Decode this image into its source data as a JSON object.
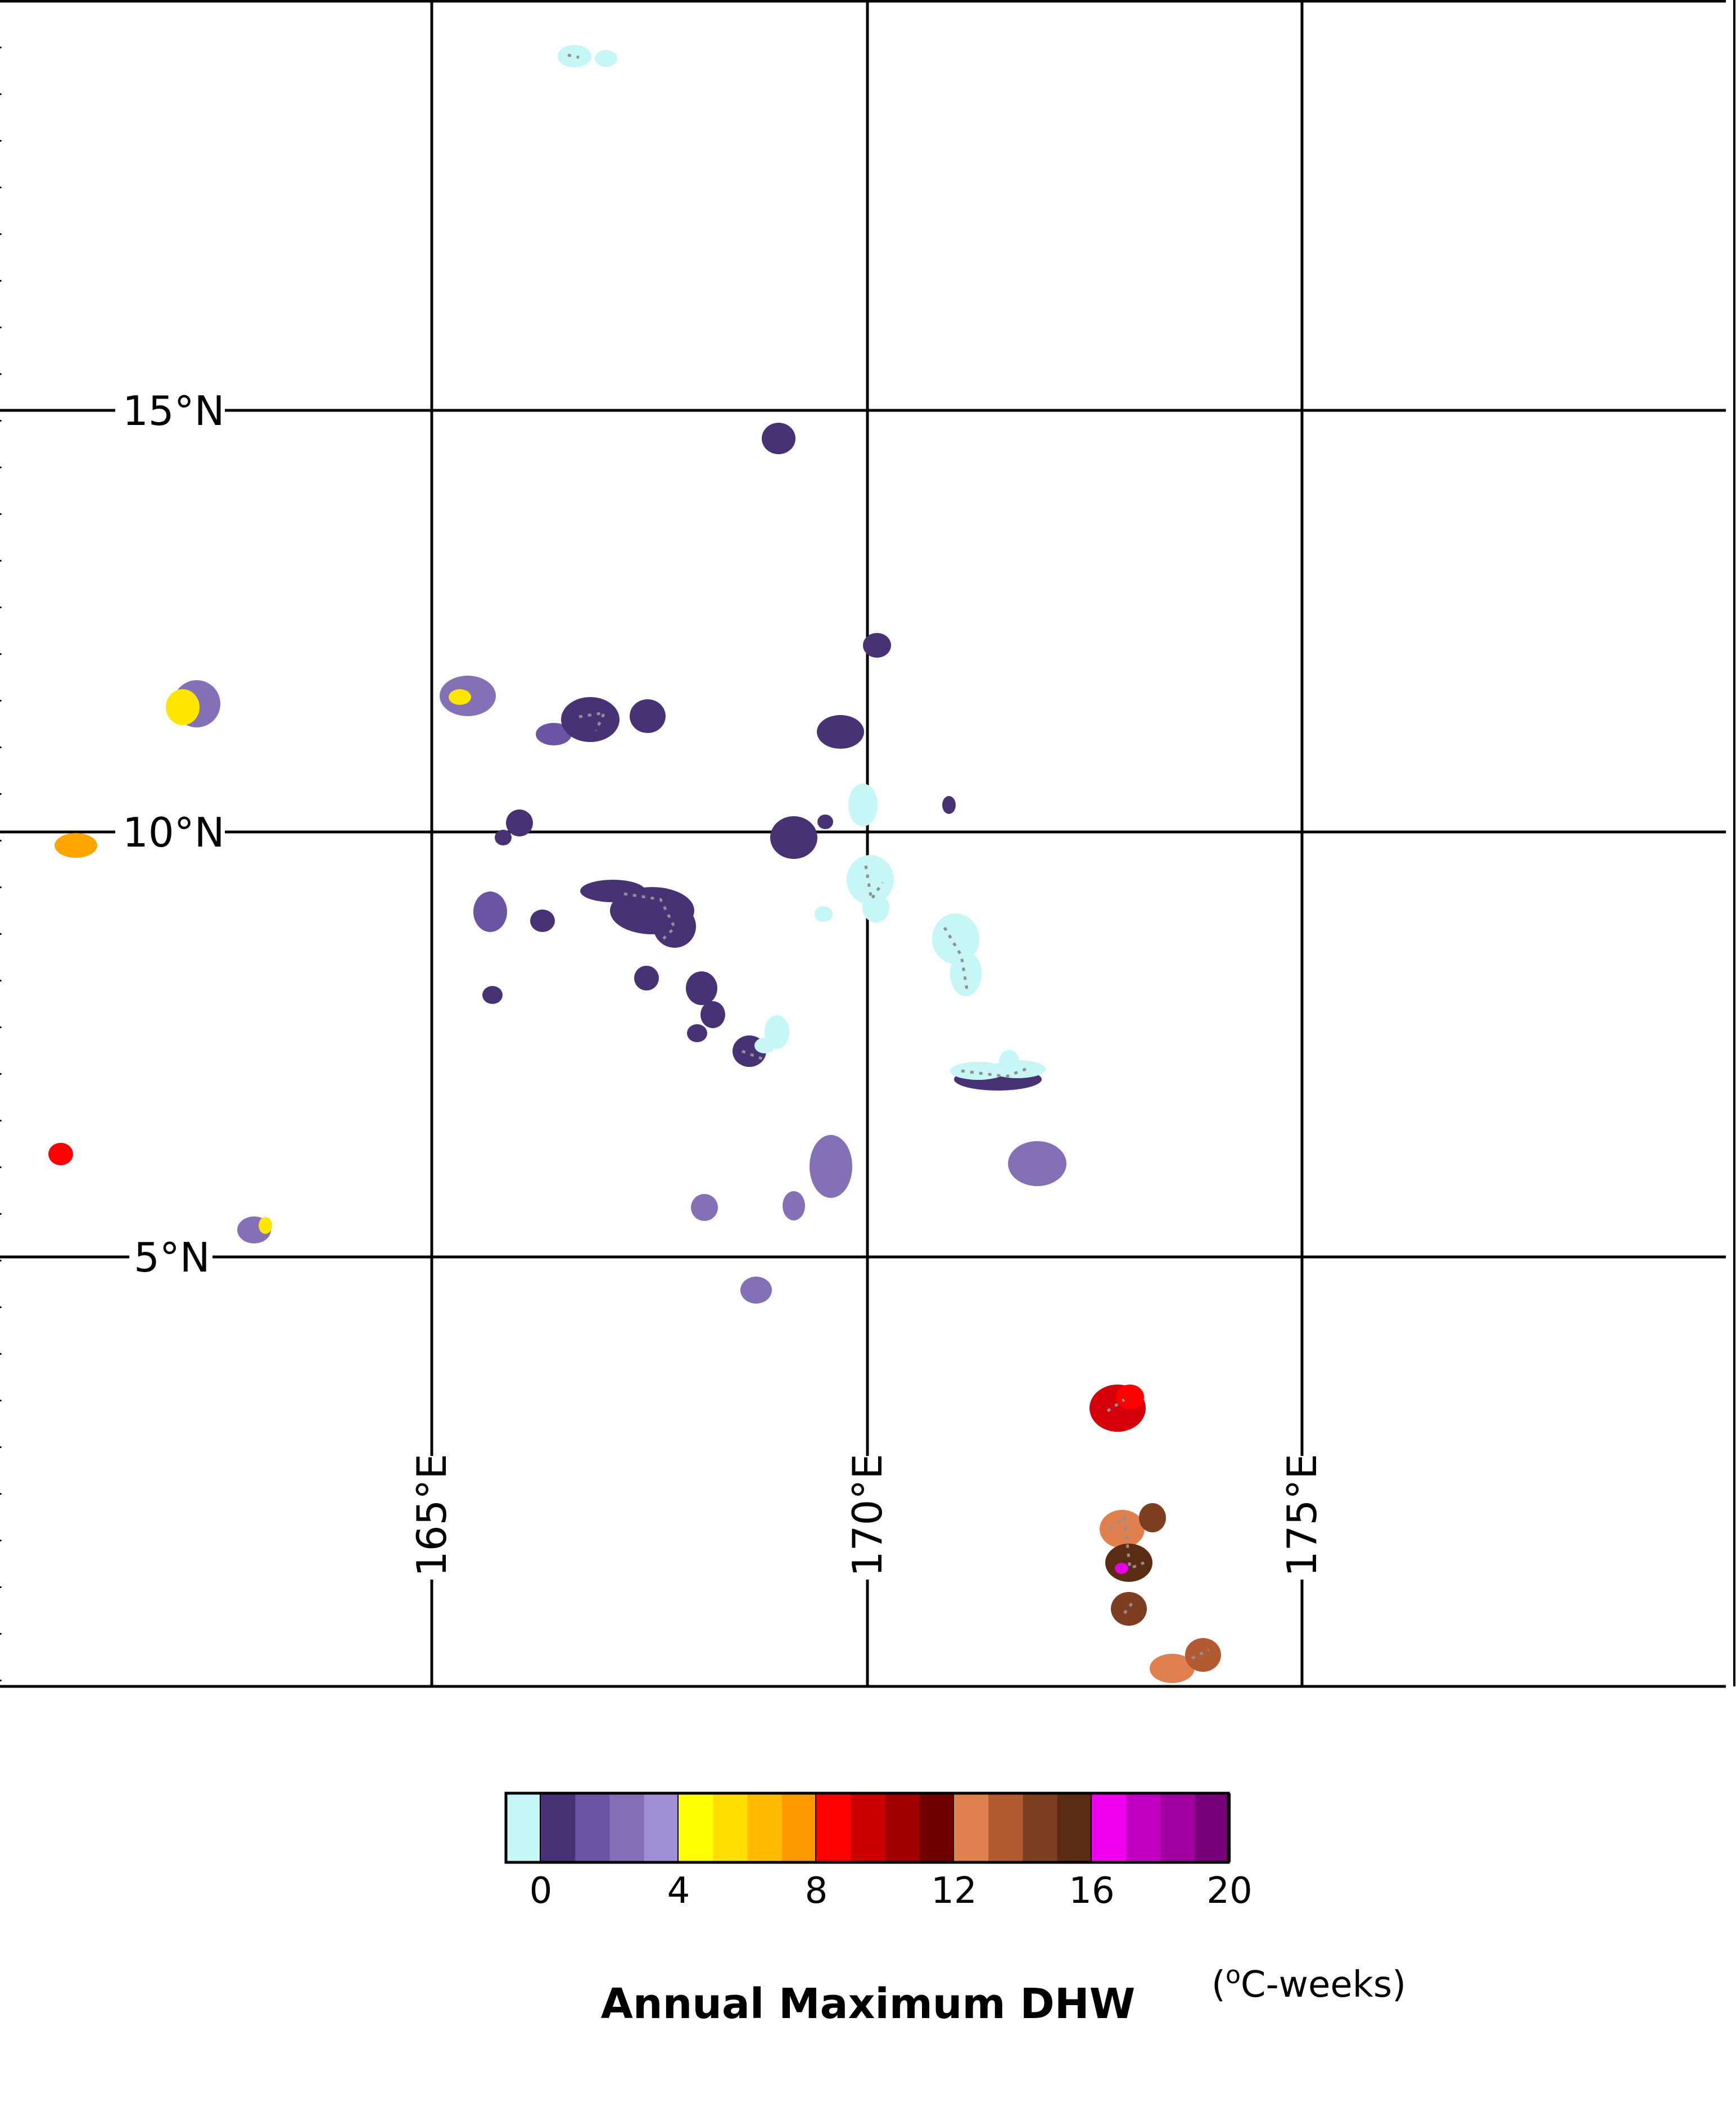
{
  "map": {
    "lat_labels": [
      "15°N",
      "10°N",
      "5°N"
    ],
    "lon_labels": [
      "165°E",
      "170°E",
      "175°E"
    ],
    "extent": {
      "lon": [
        160,
        180
      ],
      "lat": [
        0.2,
        20
      ]
    },
    "patch_colors": {
      "c0": "#c6f6f6",
      "d1": "#473275",
      "d2": "#6a54a3",
      "d3": "#8470b6",
      "y1": "#ffe600",
      "o1": "#ffa500",
      "r1": "#ff0000",
      "r2": "#d4000a",
      "b1": "#e0804e",
      "b2": "#b25a32",
      "b3": "#7e3e22",
      "b4": "#5a2c14",
      "m1": "#e600e6",
      "grey": "#909090"
    }
  },
  "legend": {
    "title": "Annual Maximum DHW",
    "units_prefix": "(",
    "units_sup": "o",
    "units_suffix": "C-weeks)",
    "tick_labels": [
      "0",
      "4",
      "8",
      "12",
      "16",
      "20"
    ],
    "bin_colors": [
      "#c6f6f6",
      "#473275",
      "#6a54a3",
      "#8470b6",
      "#a08fd4",
      "#ffff00",
      "#ffdd00",
      "#ffbb00",
      "#ff9900",
      "#ff0000",
      "#cc0000",
      "#a00000",
      "#700000",
      "#e0804e",
      "#b25a32",
      "#7e3e22",
      "#5a2c14",
      "#ee00ee",
      "#c200c2",
      "#a000a0",
      "#780078"
    ]
  }
}
